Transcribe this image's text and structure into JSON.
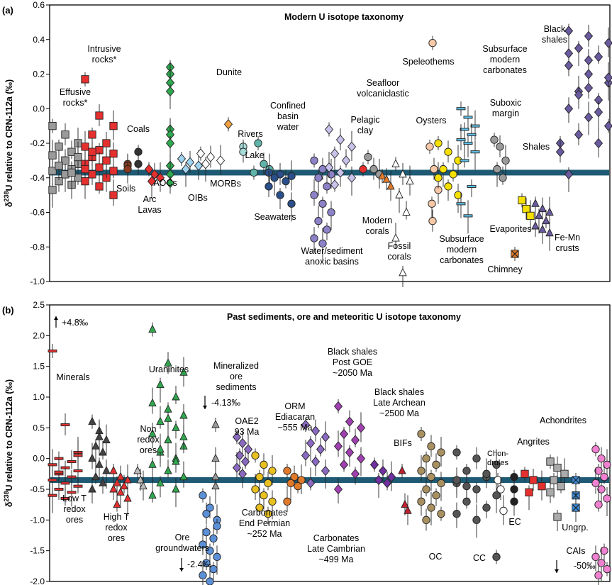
{
  "chart_data": [
    {
      "panel": "(a)",
      "type": "scatter",
      "title": "Modern U isotope taxonomy",
      "ylabel_prefix": "δ",
      "ylabel_sup": "238",
      "ylabel_rest": "U relative to CRN-112a (‰)",
      "ylim": [
        -1.0,
        0.6
      ],
      "yticks": [
        "0.6",
        "0.4",
        "0.2",
        "0.0",
        "-0.2",
        "-0.4",
        "-0.6",
        "-0.8",
        "-1.0"
      ],
      "reference_line": -0.37,
      "groups": [
        {
          "label": "Effusive rocks*",
          "marker": "square",
          "color": "#9b9b9b",
          "values": [
            -0.1,
            -0.15,
            -0.2,
            -0.22,
            -0.25,
            -0.27,
            -0.3,
            -0.32,
            -0.33,
            -0.35,
            -0.36,
            -0.38,
            -0.4,
            -0.42,
            -0.44,
            -0.47,
            -0.3,
            -0.28,
            -0.33,
            -0.37
          ]
        },
        {
          "label": "Intrusive rocks*",
          "marker": "square",
          "color": "#e53030",
          "values": [
            0.17,
            -0.04,
            -0.1,
            -0.15,
            -0.2,
            -0.22,
            -0.24,
            -0.26,
            -0.28,
            -0.3,
            -0.32,
            -0.34,
            -0.36,
            -0.38,
            -0.4,
            -0.42,
            -0.45,
            -0.5,
            -0.25,
            -0.3,
            -0.35
          ]
        },
        {
          "label": "Soils",
          "marker": "circle",
          "color": "#8b3a1e",
          "values": [
            -0.32,
            -0.33,
            -0.35
          ]
        },
        {
          "label": "Coals",
          "marker": "circle",
          "color": "#333333",
          "values": [
            -0.25,
            -0.32
          ]
        },
        {
          "label": "Arc Lavas",
          "marker": "diamond",
          "color": "#e53030",
          "values": [
            -0.35,
            -0.38,
            -0.4,
            -0.42
          ]
        },
        {
          "label": "AOCs",
          "marker": "diamond",
          "color": "#2fa84f",
          "values": [
            0.24,
            0.2,
            0.15,
            0.1,
            -0.12,
            -0.15,
            -0.2,
            -0.33,
            -0.38,
            -0.43
          ]
        },
        {
          "label": "OIBs",
          "marker": "diamond",
          "color": "#9fd3f0",
          "values": [
            -0.29,
            -0.31,
            -0.33,
            -0.35
          ]
        },
        {
          "label": "Dunite",
          "marker": "diamond",
          "color": "#f0a040",
          "values": [
            -0.09
          ]
        },
        {
          "label": "MORBs",
          "marker": "diamond",
          "color": "#ffffff",
          "values": [
            -0.26,
            -0.28,
            -0.3,
            -0.32
          ]
        },
        {
          "label": "Rivers",
          "marker": "circle",
          "color": "#a6dcd8",
          "values": [
            -0.22,
            -0.25
          ]
        },
        {
          "label": "Lake",
          "marker": "circle",
          "color": "#5fb3a8",
          "values": [
            -0.37
          ]
        },
        {
          "label": "Confined basin water",
          "marker": "circle",
          "color": "#5fb3a8",
          "values": [
            -0.2,
            -0.32,
            -0.35
          ]
        },
        {
          "label": "Seawaters",
          "marker": "circle",
          "color": "#2a4f8a",
          "values": [
            -0.37,
            -0.38,
            -0.39,
            -0.4,
            -0.42,
            -0.45,
            -0.5,
            -0.55
          ]
        },
        {
          "label": "Water/sediment anoxic basins",
          "marker": "circle",
          "color": "#8c82c8",
          "values": [
            -0.3,
            -0.35,
            -0.38,
            -0.4,
            -0.45,
            -0.5,
            -0.55,
            -0.6,
            -0.65,
            -0.7,
            -0.75,
            -0.78
          ]
        },
        {
          "label": "Water/sediment anoxic basins",
          "marker": "diamond",
          "color": "#c9c2ea",
          "values": [
            -0.12,
            -0.18,
            -0.22,
            -0.26,
            -0.3,
            -0.34,
            -0.37,
            -0.4,
            -0.44
          ]
        },
        {
          "label": "Pelagic clay",
          "marker": "circle",
          "color": "#e53030",
          "values": [
            -0.35
          ]
        },
        {
          "label": "Seafloor volcaniclastic",
          "marker": "circle",
          "color": "#9b9b9b",
          "values": [
            -0.28,
            -0.35,
            -0.38
          ]
        },
        {
          "label": "Modern corals",
          "marker": "triangle",
          "color": "#e07a2a",
          "values": [
            -0.39,
            -0.41,
            -0.45
          ]
        },
        {
          "label": "Fossil corals",
          "marker": "triangle",
          "color": "#ffffff",
          "values": [
            -0.32,
            -0.38,
            -0.42,
            -0.5,
            -0.6,
            -0.75,
            -0.95
          ]
        },
        {
          "label": "Oysters",
          "marker": "circle",
          "color": "#f7c8a8",
          "values": [
            -0.22,
            -0.35,
            -0.47,
            -0.55
          ]
        },
        {
          "label": "Speleothems",
          "marker": "circle",
          "color": "#f7c8a8",
          "values": [
            0.38,
            -0.65
          ]
        },
        {
          "label": "Subsurface modern carbonates",
          "marker": "circle",
          "color": "#f5e000",
          "values": [
            -0.2,
            -0.25,
            -0.3,
            -0.35,
            -0.38,
            -0.4,
            -0.45,
            -0.5
          ]
        },
        {
          "label": "Subsurface modern carbonates",
          "marker": "dash",
          "color": "#5fc0e8",
          "values": [
            0.0,
            -0.05,
            -0.1,
            -0.12,
            -0.15,
            -0.18,
            -0.2,
            -0.25,
            -0.3,
            -0.45,
            -0.55,
            -0.62
          ]
        },
        {
          "label": "Suboxic margin",
          "marker": "circle",
          "color": "#9b9b9b",
          "values": [
            -0.18,
            -0.22,
            -0.3,
            -0.35,
            -0.4
          ]
        },
        {
          "label": "Evaporites",
          "marker": "square",
          "color": "#f5e000",
          "values": [
            -0.53,
            -0.58,
            -0.62
          ]
        },
        {
          "label": "Chimney",
          "marker": "square-x",
          "color": "#e07a2a",
          "values": [
            -0.84
          ]
        },
        {
          "label": "Fe-Mn crusts",
          "marker": "triangle",
          "color": "#6a5a9e",
          "values": [
            -0.55,
            -0.58,
            -0.6,
            -0.62,
            -0.65,
            -0.68,
            -0.7,
            -0.72
          ]
        },
        {
          "label": "Shales",
          "marker": "diamond",
          "color": "#6a5a9e",
          "values": [
            -0.2,
            -0.25
          ]
        },
        {
          "label": "Black shales",
          "marker": "diamond",
          "color": "#6a5a9e",
          "values": [
            0.45,
            0.42,
            0.38,
            0.35,
            0.3,
            0.25,
            0.2,
            0.15,
            0.1,
            0.05,
            0.0,
            -0.05,
            -0.1,
            -0.15,
            -0.2,
            -0.38,
            0.28,
            0.18,
            0.08,
            -0.02,
            0.32,
            0.12
          ]
        }
      ]
    },
    {
      "panel": "(b)",
      "type": "scatter",
      "title": "Past sediments, ore and meteoritic U isotope taxonomy",
      "ylabel_prefix": "δ",
      "ylabel_sup": "238",
      "ylabel_rest": "U relative to CRN-112a (‰)",
      "ylim": [
        -2.0,
        2.5
      ],
      "yticks": [
        "2.5",
        "2.0",
        "1.5",
        "1.0",
        "0.5",
        "0.0",
        "-0.5",
        "-1.0",
        "-1.5",
        "-2.0"
      ],
      "reference_line": -0.35,
      "annotations": [
        "+4.8‰",
        "-4.13‰",
        "-2.4‰",
        "-50‰"
      ],
      "groups": [
        {
          "label": "Minerals",
          "marker": "dash",
          "color": "#e53030",
          "values": [
            1.75,
            0.55,
            0.1,
            0.0,
            -0.05,
            -0.1,
            -0.15,
            -0.2,
            -0.25,
            -0.3,
            -0.35,
            -0.4,
            -0.45,
            -0.5,
            -0.55,
            -0.6,
            -0.65,
            0.05,
            -0.22
          ]
        },
        {
          "label": "Low T redox ores",
          "marker": "triangle",
          "color": "#444444",
          "values": [
            0.6,
            0.45,
            0.3,
            0.2,
            0.1,
            0.0,
            -0.1,
            -0.2,
            -0.3,
            -0.4,
            -0.5,
            0.35
          ]
        },
        {
          "label": "High T redox ores",
          "marker": "triangle",
          "color": "#e53030",
          "values": [
            -0.2,
            -0.3,
            -0.35,
            -0.4,
            -0.45,
            -0.5,
            -0.55,
            -0.65,
            -0.75
          ]
        },
        {
          "label": "Non redox ores",
          "marker": "triangle",
          "color": "#bbbbbb",
          "values": [
            -0.2,
            -0.35,
            -0.45
          ]
        },
        {
          "label": "Uraninites",
          "marker": "triangle",
          "color": "#2fa84f",
          "values": [
            2.1,
            1.55,
            1.4,
            1.2,
            1.0,
            0.9,
            0.8,
            0.7,
            0.6,
            0.5,
            0.4,
            0.3,
            0.2,
            0.1,
            0.0,
            -0.1,
            -0.2,
            -0.3,
            -0.4,
            -0.5,
            -0.6,
            0.65,
            0.35,
            0.15,
            -0.05
          ]
        },
        {
          "label": "Mineralized ore sediments",
          "marker": "triangle",
          "color": "#999999",
          "values": [
            0.55,
            0.0,
            -0.3,
            -0.45
          ]
        },
        {
          "label": "Ore groundwaters",
          "marker": "circle",
          "color": "#5b8fd6",
          "values": [
            -0.6,
            -0.8,
            -1.0,
            -1.2,
            -1.3,
            -1.4,
            -1.5,
            -1.6,
            -1.7,
            -1.8,
            -1.9,
            -2.0,
            -1.1,
            -0.9
          ]
        },
        {
          "label": "OAE2 93 Ma",
          "marker": "diamond",
          "color": "#8a6ac0",
          "values": [
            0.35,
            0.25,
            0.15,
            0.05,
            -0.05,
            -0.15,
            -0.25
          ]
        },
        {
          "label": "Carbonates End Permian ~252 Ma",
          "marker": "circle",
          "color": "#e8c020",
          "values": [
            0.05,
            -0.1,
            -0.2,
            -0.3,
            -0.4,
            -0.5,
            -0.6,
            -0.7,
            -0.8,
            -0.9
          ]
        },
        {
          "label": "Carbonates Late Cambrian ~499 Ma",
          "marker": "circle",
          "color": "#e07a2a",
          "values": [
            -0.2,
            -0.3,
            -0.35,
            -0.4,
            -0.45,
            -0.7
          ]
        },
        {
          "label": "ORM Ediacaran ~555 Ma",
          "marker": "diamond",
          "color": "#8a6ac0",
          "values": [
            0.55,
            0.45,
            0.35,
            0.25,
            0.15,
            0.05,
            -0.05,
            -0.2,
            -0.4
          ]
        },
        {
          "label": "Black shales Post GOE ~2050 Ma",
          "marker": "diamond",
          "color": "#a040b0",
          "values": [
            0.85,
            0.6,
            0.5,
            0.4,
            0.3,
            0.2,
            0.1,
            0.0,
            -0.1,
            -0.25,
            -0.5
          ]
        },
        {
          "label": "Black shales Late Archean ~2500 Ma",
          "marker": "diamond",
          "color": "#7030a0",
          "values": [
            -0.1,
            -0.2,
            -0.3,
            -0.35,
            -0.4
          ]
        },
        {
          "label": "BIFs",
          "marker": "triangle",
          "color": "#c02030",
          "values": [
            -0.2,
            -0.75,
            -0.85
          ]
        },
        {
          "label": "OC",
          "marker": "circle",
          "color": "#a89060",
          "values": [
            0.4,
            0.2,
            0.1,
            0.0,
            -0.1,
            -0.2,
            -0.3,
            -0.4,
            -0.5,
            -0.6,
            -0.7,
            -0.8,
            -0.9,
            -1.0
          ]
        },
        {
          "label": "CC",
          "marker": "circle",
          "color": "#555555",
          "values": [
            0.1,
            0.0,
            -0.1,
            -0.2,
            -0.3,
            -0.4,
            -0.5,
            -0.6,
            -0.7,
            -0.8,
            -0.9,
            -1.0,
            -1.6,
            -0.45,
            -0.25,
            -0.35
          ]
        },
        {
          "label": "Chondrules",
          "marker": "circle",
          "color": "#ffffff",
          "values": [
            -0.35,
            -0.5,
            -0.85
          ]
        },
        {
          "label": "EC",
          "marker": "circle",
          "color": "#222222",
          "values": [
            -0.3,
            -0.5,
            -0.7
          ]
        },
        {
          "label": "Angrites",
          "marker": "square",
          "color": "#e53030",
          "values": [
            -0.25,
            -0.35,
            -0.45,
            -0.55
          ]
        },
        {
          "label": "Achondrites",
          "marker": "square",
          "color": "#aaaaaa",
          "values": [
            -0.05,
            -0.15,
            -0.25,
            -0.35,
            -0.45,
            -0.55,
            -0.95
          ]
        },
        {
          "label": "Ungrp.",
          "marker": "x-box",
          "color": "#3a8ee0",
          "values": [
            -0.35,
            -0.6,
            -0.8
          ]
        },
        {
          "label": "CAIs",
          "marker": "circle",
          "color": "#f080d0",
          "values": [
            0.15,
            0.0,
            -0.1,
            -0.2,
            -0.3,
            -0.4,
            -0.5,
            -0.65,
            -0.75,
            -1.5,
            -1.6,
            -1.7,
            -1.8,
            -1.9
          ]
        }
      ]
    }
  ],
  "labels_a": {
    "effusive": [
      "Effusive",
      "rocks*"
    ],
    "intrusive": [
      "Intrusive",
      "rocks*"
    ],
    "coals": "Coals",
    "soils": "Soils",
    "arc": [
      "Arc",
      "Lavas"
    ],
    "aocs": "AOCs",
    "oibs": "OIBs",
    "dunite": "Dunite",
    "morbs": "MORBs",
    "rivers": "Rivers",
    "lake": "Lake",
    "confined": [
      "Confined",
      "basin",
      "water"
    ],
    "seawaters": "Seawaters",
    "anoxic": [
      "Water/sediment",
      "anoxic basins"
    ],
    "seafloor": [
      "Seafloor",
      "volcaniclastic"
    ],
    "pelagic": [
      "Pelagic",
      "clay"
    ],
    "modern_corals": [
      "Modern",
      "corals"
    ],
    "fossil_corals": [
      "Fossil",
      "corals"
    ],
    "oysters": "Oysters",
    "speleothems": "Speleothems",
    "subsurface_top": [
      "Subsurface",
      "modern",
      "carbonates"
    ],
    "subsurface_bottom": [
      "Subsurface",
      "modern",
      "carbonates"
    ],
    "suboxic": [
      "Suboxic",
      "margin"
    ],
    "evaporites": "Evaporites",
    "chimney": "Chimney",
    "femn": [
      "Fe-Mn",
      "crusts"
    ],
    "shales": "Shales",
    "black_shales": [
      "Black",
      "shales"
    ]
  },
  "labels_b": {
    "plus48": "+4.8‰",
    "minerals": "Minerals",
    "low_t": [
      "Low T",
      "redox",
      "ores"
    ],
    "high_t": [
      "High T",
      "redox",
      "ores"
    ],
    "non_redox": [
      "Non",
      "redox",
      "ores"
    ],
    "uraninites": "Uraninites",
    "mineralized": [
      "Mineralized",
      "ore",
      "sediments",
      "-4.13‰"
    ],
    "ore_gw": [
      "Ore",
      "groundwaters",
      "-2.4‰"
    ],
    "oae2": [
      "OAE2",
      "93 Ma"
    ],
    "carb_permian": [
      "Carbonates",
      "End Permian",
      "~252 Ma"
    ],
    "carb_cambrian": [
      "Carbonates",
      "Late Cambrian",
      "~499 Ma"
    ],
    "orm": [
      "ORM",
      "Ediacaran",
      "~555 Ma"
    ],
    "bs_post": [
      "Black shales",
      "Post GOE",
      "~2050 Ma"
    ],
    "bs_archean": [
      "Black shales",
      "Late Archean",
      "~2500 Ma"
    ],
    "bifs": "BIFs",
    "oc": "OC",
    "cc": "CC",
    "chondrules": [
      "Chon-",
      "drules"
    ],
    "ec": "EC",
    "angrites": "Angrites",
    "achondrites": "Achondrites",
    "ungrp": "Ungrp.",
    "cais": [
      "CAIs",
      "-50‰"
    ]
  }
}
